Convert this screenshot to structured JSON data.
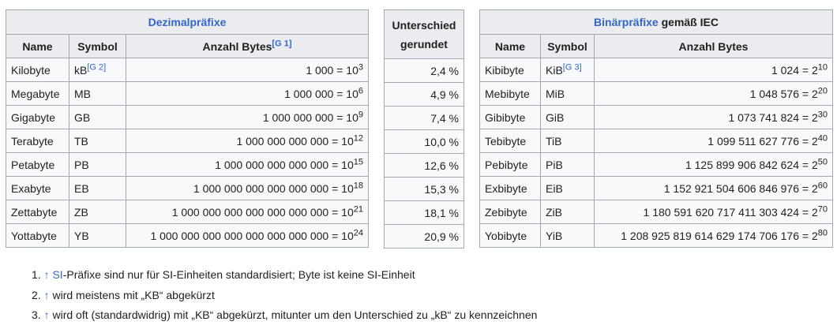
{
  "dezimal": {
    "title": "Dezimalpräfixe",
    "headers": {
      "name": "Name",
      "symbol": "Symbol",
      "bytes": "Anzahl Bytes",
      "bytes_ref": "[G 1]"
    },
    "rows": [
      {
        "name": "Kilobyte",
        "symbol": "kB",
        "symbol_ref": "[G 2]",
        "bytes": "1 000 = 10",
        "exp": "3"
      },
      {
        "name": "Megabyte",
        "symbol": "MB",
        "symbol_ref": "",
        "bytes": "1 000 000 = 10",
        "exp": "6"
      },
      {
        "name": "Gigabyte",
        "symbol": "GB",
        "symbol_ref": "",
        "bytes": "1 000 000 000 = 10",
        "exp": "9"
      },
      {
        "name": "Terabyte",
        "symbol": "TB",
        "symbol_ref": "",
        "bytes": "1 000 000 000 000 = 10",
        "exp": "12"
      },
      {
        "name": "Petabyte",
        "symbol": "PB",
        "symbol_ref": "",
        "bytes": "1 000 000 000 000 000 = 10",
        "exp": "15"
      },
      {
        "name": "Exabyte",
        "symbol": "EB",
        "symbol_ref": "",
        "bytes": "1 000 000 000 000 000 000 = 10",
        "exp": "18"
      },
      {
        "name": "Zettabyte",
        "symbol": "ZB",
        "symbol_ref": "",
        "bytes": "1 000 000 000 000 000 000 000 = 10",
        "exp": "21"
      },
      {
        "name": "Yottabyte",
        "symbol": "YB",
        "symbol_ref": "",
        "bytes": "1 000 000 000 000 000 000 000 000 = 10",
        "exp": "24"
      }
    ]
  },
  "unterschied": {
    "header_line1": "Unterschied",
    "header_line2": "gerundet",
    "values": [
      "2,4 %",
      "4,9 %",
      "7,4 %",
      "10,0 %",
      "12,6 %",
      "15,3 %",
      "18,1 %",
      "20,9 %"
    ]
  },
  "binaer": {
    "title_link": "Binärpräfixe",
    "title_rest": " gemäß IEC",
    "headers": {
      "name": "Name",
      "symbol": "Symbol",
      "bytes": "Anzahl Bytes"
    },
    "rows": [
      {
        "name": "Kibibyte",
        "symbol": "KiB",
        "symbol_ref": "[G 3]",
        "bytes": "1 024 = 2",
        "exp": "10"
      },
      {
        "name": "Mebibyte",
        "symbol": "MiB",
        "symbol_ref": "",
        "bytes": "1 048 576 = 2",
        "exp": "20"
      },
      {
        "name": "Gibibyte",
        "symbol": "GiB",
        "symbol_ref": "",
        "bytes": "1 073 741 824 = 2",
        "exp": "30"
      },
      {
        "name": "Tebibyte",
        "symbol": "TiB",
        "symbol_ref": "",
        "bytes": "1 099 511 627 776 = 2",
        "exp": "40"
      },
      {
        "name": "Pebibyte",
        "symbol": "PiB",
        "symbol_ref": "",
        "bytes": "1 125 899 906 842 624 = 2",
        "exp": "50"
      },
      {
        "name": "Exbibyte",
        "symbol": "EiB",
        "symbol_ref": "",
        "bytes": "1 152 921 504 606 846 976 = 2",
        "exp": "60"
      },
      {
        "name": "Zebibyte",
        "symbol": "ZiB",
        "symbol_ref": "",
        "bytes": "1 180 591 620 717 411 303 424 = 2",
        "exp": "70"
      },
      {
        "name": "Yobibyte",
        "symbol": "YiB",
        "symbol_ref": "",
        "bytes": "1 208 925 819 614 629 174 706 176 = 2",
        "exp": "80"
      }
    ]
  },
  "footnotes": [
    {
      "num": "1.",
      "arrow": "↑",
      "link": "SI",
      "text": "-Präfixe sind nur für SI-Einheiten standardisiert; Byte ist keine SI-Einheit"
    },
    {
      "num": "2.",
      "arrow": "↑",
      "link": "",
      "text": "wird meistens mit „KB“ abgekürzt"
    },
    {
      "num": "3.",
      "arrow": "↑",
      "link": "",
      "text": "wird oft (standardwidrig) mit „KB“ abgekürzt, mitunter um den Unterschied zu „kB“ zu kennzeichnen"
    }
  ]
}
